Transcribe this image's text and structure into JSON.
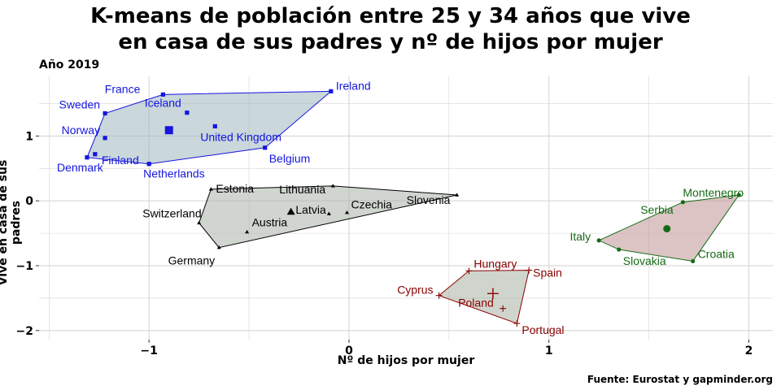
{
  "title_line1": "K-means de población entre 25 y 34 años que vive",
  "title_line2": "en casa de sus padres y nº de hijos por mujer",
  "subtitle": "Año 2019",
  "caption": "Fuente: Eurostat y gapminder.org",
  "chart_data": {
    "type": "scatter",
    "xlabel": "Nº de hijos por mujer",
    "ylabel": "Vive en casa de sus padres",
    "xlim": [
      -1.55,
      2.12
    ],
    "ylim": [
      -2.14,
      1.92
    ],
    "xticks": [
      -1,
      0,
      1,
      2
    ],
    "yticks": [
      -2,
      -1,
      0,
      1
    ],
    "grid": true,
    "legend": "none",
    "series": [
      {
        "color": "#1515e0",
        "fill": "#9fb6bd",
        "marker": "square",
        "centroid": [
          -0.9,
          1.09
        ],
        "hull": [
          "Denmark",
          "Sweden",
          "France",
          "Ireland",
          "Belgium",
          "Netherlands"
        ],
        "points": [
          {
            "label": "France",
            "x": -0.93,
            "y": 1.64
          },
          {
            "label": "Ireland",
            "x": -0.09,
            "y": 1.69
          },
          {
            "label": "Sweden",
            "x": -1.22,
            "y": 1.35
          },
          {
            "label": "Iceland",
            "x": -0.81,
            "y": 1.36
          },
          {
            "label": "Norway",
            "x": -1.22,
            "y": 0.97
          },
          {
            "label": "United Kingdom",
            "x": -0.67,
            "y": 1.15
          },
          {
            "label": "Finland",
            "x": -1.27,
            "y": 0.72
          },
          {
            "label": "Denmark",
            "x": -1.31,
            "y": 0.67
          },
          {
            "label": "Belgium",
            "x": -0.42,
            "y": 0.82
          },
          {
            "label": "Netherlands",
            "x": -1.0,
            "y": 0.57
          }
        ]
      },
      {
        "color": "#000000",
        "fill": "#a9b2a9",
        "marker": "triangle",
        "centroid": [
          -0.29,
          -0.17
        ],
        "hull": [
          "Switzerland",
          "Estonia",
          "Lithuania",
          "Slovenia",
          "Germany"
        ],
        "points": [
          {
            "label": "Estonia",
            "x": -0.69,
            "y": 0.18
          },
          {
            "label": "Lithuania",
            "x": -0.08,
            "y": 0.23
          },
          {
            "label": "Slovenia",
            "x": 0.54,
            "y": 0.09
          },
          {
            "label": "Latvia",
            "x": -0.1,
            "y": -0.2
          },
          {
            "label": "Czechia",
            "x": -0.01,
            "y": -0.18
          },
          {
            "label": "Switzerland",
            "x": -0.75,
            "y": -0.34
          },
          {
            "label": "Austria",
            "x": -0.51,
            "y": -0.48
          },
          {
            "label": "Germany",
            "x": -0.65,
            "y": -0.72
          }
        ]
      },
      {
        "color": "#156b15",
        "fill": "#c09496",
        "marker": "circle",
        "centroid": [
          1.59,
          -0.43
        ],
        "hull": [
          "Italy",
          "Montenegro",
          "Serbia",
          "Croatia",
          "Slovakia"
        ],
        "points": [
          {
            "label": "Montenegro",
            "x": 1.67,
            "y": -0.02
          },
          {
            "label": "Serbia",
            "x": 1.95,
            "y": 0.09
          },
          {
            "label": "Italy",
            "x": 1.25,
            "y": -0.61
          },
          {
            "label": "Slovakia",
            "x": 1.35,
            "y": -0.75
          },
          {
            "label": "Croatia",
            "x": 1.72,
            "y": -0.93
          }
        ]
      },
      {
        "color": "#8b0000",
        "fill": "#a7b3a4",
        "marker": "plus",
        "centroid": [
          0.72,
          -1.43
        ],
        "hull": [
          "Cyprus",
          "Hungary",
          "Spain",
          "Portugal"
        ],
        "points": [
          {
            "label": "Hungary",
            "x": 0.6,
            "y": -1.08
          },
          {
            "label": "Spain",
            "x": 0.9,
            "y": -1.07
          },
          {
            "label": "Cyprus",
            "x": 0.45,
            "y": -1.46
          },
          {
            "label": "Poland",
            "x": 0.77,
            "y": -1.66
          },
          {
            "label": "Portugal",
            "x": 0.84,
            "y": -1.89
          }
        ]
      }
    ]
  }
}
